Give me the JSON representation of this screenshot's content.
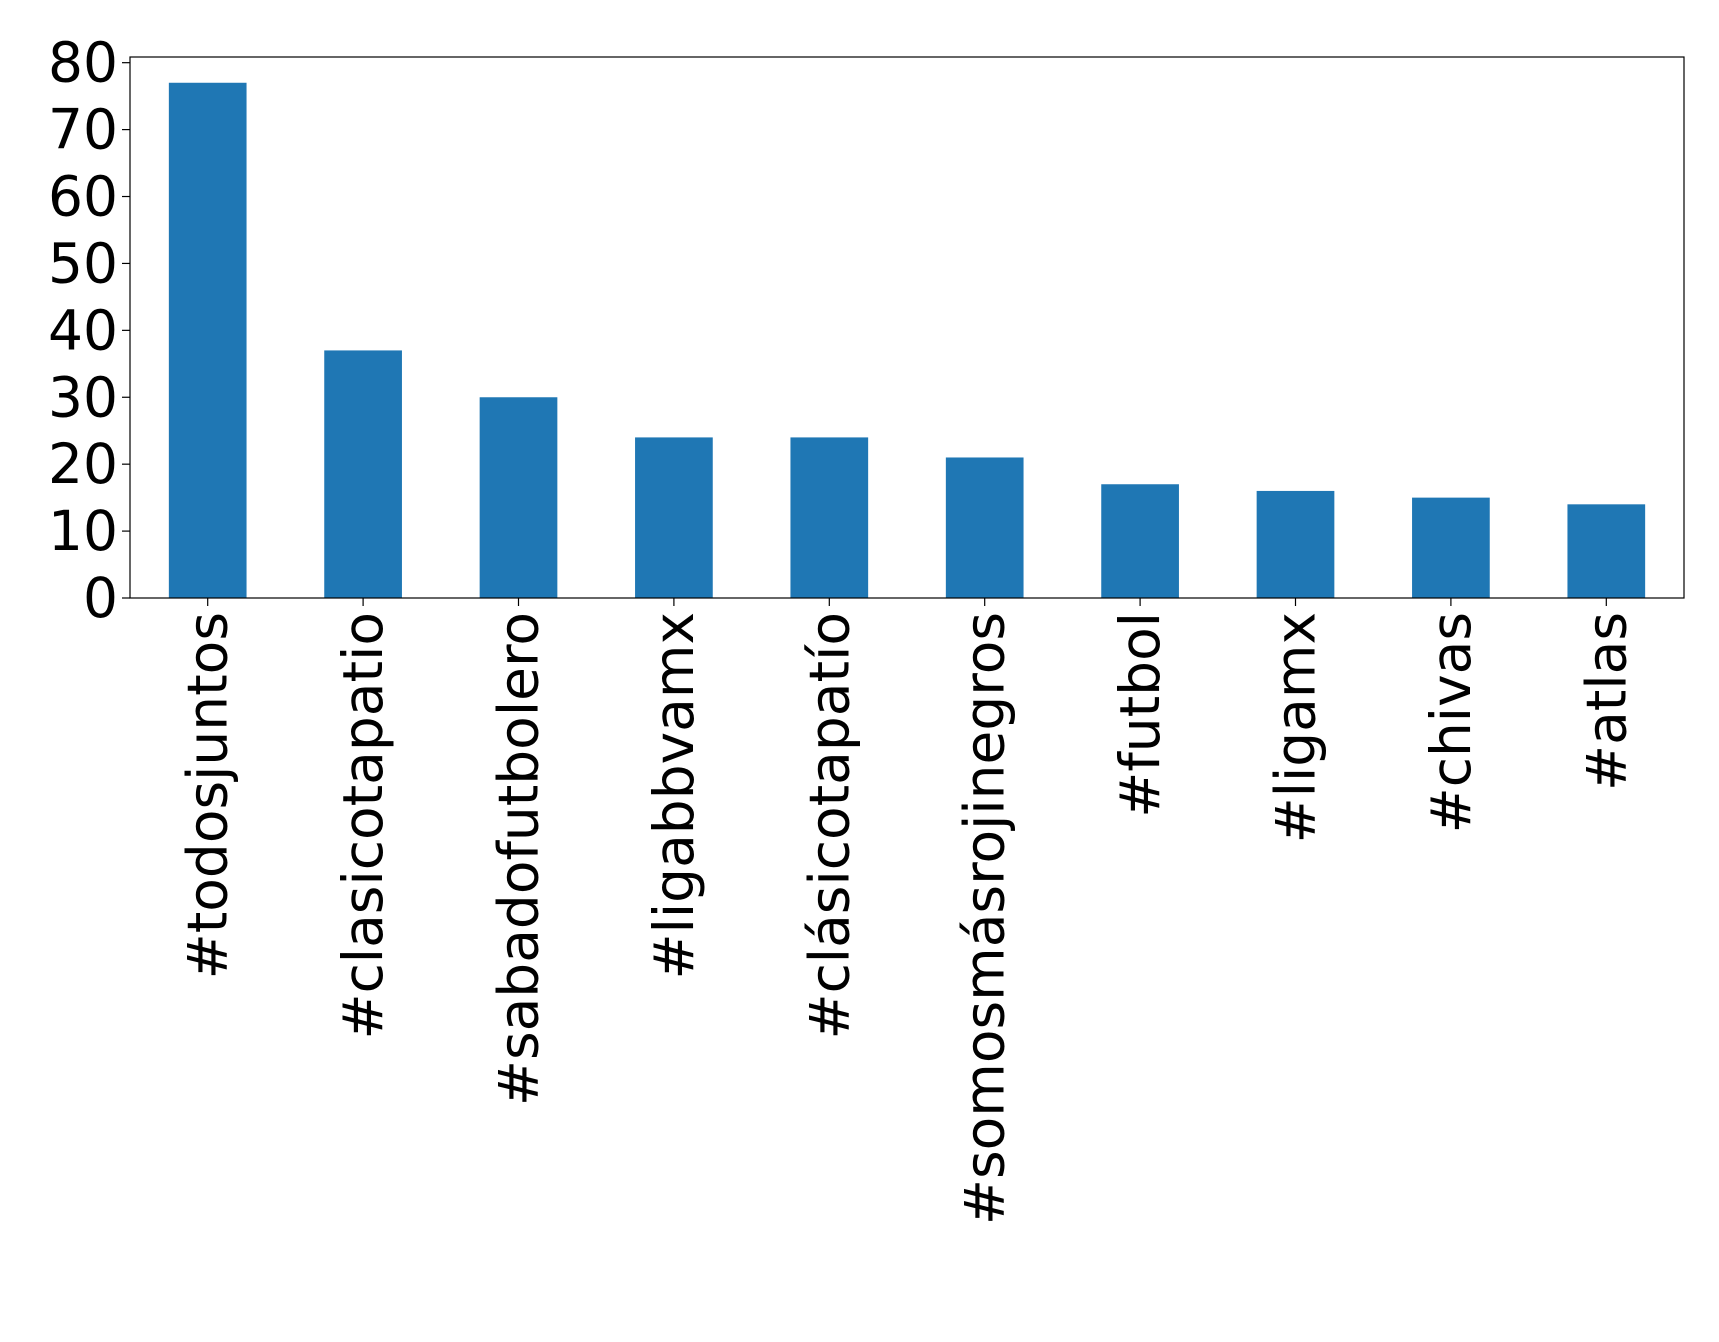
{
  "chart_data": {
    "type": "bar",
    "categories": [
      "#todosjuntos",
      "#clasicotapatio",
      "#sabadofutbolero",
      "#ligabbvamx",
      "#clásicotapatío",
      "#somosmásrojinegros",
      "#futbol",
      "#ligamx",
      "#chivas",
      "#atlas"
    ],
    "values": [
      77,
      37,
      30,
      24,
      24,
      21,
      17,
      16,
      15,
      14
    ],
    "color": "#1f77b4",
    "ylim": [
      0,
      80.85
    ],
    "yticks": [
      0,
      10,
      20,
      30,
      40,
      50,
      60,
      70,
      80
    ],
    "grid": false
  }
}
